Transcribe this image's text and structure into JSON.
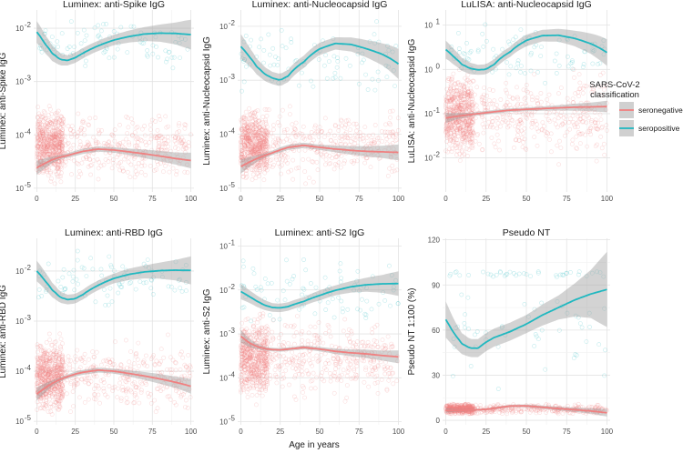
{
  "figure": {
    "x_axis_label": "Age in years",
    "legend": {
      "title_line1": "SARS-CoV-2",
      "title_line2": "classification",
      "entries": [
        {
          "label": "seronegative",
          "color": "#f08080"
        },
        {
          "label": "seropositive",
          "color": "#20b8c0"
        }
      ]
    }
  },
  "chart_data": [
    {
      "id": "spike",
      "type": "line",
      "scale": "log",
      "title": "Luminex: anti-Spike IgG",
      "title_color": "#1a1a1a",
      "ylabel": "Luminex: anti-Spike IgG",
      "ylabel_color": "#1a1a1a",
      "xlim": [
        -2,
        102
      ],
      "ylim": [
        8.5e-06,
        0.022
      ],
      "xticks": [
        0,
        25,
        50,
        75,
        100
      ],
      "yticks": [
        {
          "value": 1e-05,
          "label": "10"
        },
        {
          "value": 0.0001,
          "label": "10"
        },
        {
          "value": 0.001,
          "label": "10"
        },
        {
          "value": 0.01,
          "label": "10"
        }
      ],
      "ytick_exponents": [
        "-5",
        "-4",
        "-3",
        "-2"
      ],
      "series": [
        {
          "name": "seropositive",
          "color": "#20b8c0",
          "x": [
            0,
            5,
            10,
            15,
            20,
            25,
            30,
            40,
            50,
            60,
            70,
            80,
            90,
            100
          ],
          "values": [
            0.0085,
            0.0052,
            0.0034,
            0.0026,
            0.0025,
            0.0028,
            0.0034,
            0.0047,
            0.006,
            0.007,
            0.0078,
            0.0081,
            0.008,
            0.0076
          ],
          "band_factor": [
            1.6,
            1.5,
            1.4,
            1.3,
            1.25,
            1.25,
            1.25,
            1.25,
            1.25,
            1.3,
            1.35,
            1.45,
            1.6,
            1.9
          ],
          "scatter": {
            "n": 90,
            "ymin": 0.0012,
            "ymax": 0.02,
            "xmin": 0,
            "xmax": 100
          }
        },
        {
          "name": "seronegative",
          "color": "#f08080",
          "x": [
            0,
            5,
            10,
            15,
            20,
            25,
            30,
            40,
            50,
            60,
            70,
            80,
            90,
            100
          ],
          "values": [
            2.4e-05,
            2.9e-05,
            3.4e-05,
            3.8e-05,
            4.1e-05,
            4.5e-05,
            4.9e-05,
            5.4e-05,
            5.2e-05,
            4.8e-05,
            4.4e-05,
            4e-05,
            3.6e-05,
            3.3e-05
          ],
          "band_factor": [
            1.35,
            1.25,
            1.15,
            1.1,
            1.1,
            1.12,
            1.12,
            1.12,
            1.12,
            1.15,
            1.2,
            1.25,
            1.3,
            1.4
          ],
          "scatter": {
            "n": 900,
            "ymin": 1e-05,
            "ymax": 0.0004,
            "xmin": 0,
            "xmax": 100,
            "dense_to": 17,
            "dense_frac": 0.55
          }
        }
      ]
    },
    {
      "id": "nc",
      "type": "line",
      "scale": "log",
      "title": "Luminex: anti-Nucleocapsid IgG",
      "title_color": "#1a1a1a",
      "ylabel": "Luminex: anti-Nucleocapsid IgG",
      "ylabel_color": "#1a1a1a",
      "xlim": [
        -2,
        102
      ],
      "ylim": [
        8.5e-06,
        0.02
      ],
      "xticks": [
        0,
        25,
        50,
        75,
        100
      ],
      "yticks": [
        {
          "value": 1e-05,
          "label": "10"
        },
        {
          "value": 0.0001,
          "label": "10"
        },
        {
          "value": 0.001,
          "label": "10"
        },
        {
          "value": 0.01,
          "label": "10"
        }
      ],
      "ytick_exponents": [
        "-5",
        "-4",
        "-3",
        "-2"
      ],
      "series": [
        {
          "name": "seropositive",
          "color": "#20b8c0",
          "x": [
            0,
            5,
            10,
            15,
            20,
            25,
            30,
            40,
            50,
            60,
            70,
            80,
            90,
            100
          ],
          "values": [
            0.0042,
            0.0028,
            0.0018,
            0.0013,
            0.0011,
            0.001,
            0.0012,
            0.0022,
            0.0038,
            0.0048,
            0.0046,
            0.0038,
            0.003,
            0.002
          ],
          "band_factor": [
            1.7,
            1.5,
            1.4,
            1.35,
            1.3,
            1.3,
            1.3,
            1.3,
            1.3,
            1.3,
            1.35,
            1.45,
            1.6,
            1.9
          ],
          "scatter": {
            "n": 90,
            "ymin": 0.0003,
            "ymax": 0.018,
            "xmin": 0,
            "xmax": 100
          }
        },
        {
          "name": "seronegative",
          "color": "#f08080",
          "x": [
            0,
            5,
            10,
            15,
            20,
            25,
            30,
            40,
            50,
            60,
            70,
            80,
            90,
            100
          ],
          "values": [
            2.5e-05,
            3e-05,
            3.5e-05,
            4e-05,
            4.5e-05,
            5.1e-05,
            5.7e-05,
            6.2e-05,
            5.7e-05,
            5.3e-05,
            5e-05,
            4.8e-05,
            4.7e-05,
            4.6e-05
          ],
          "band_factor": [
            1.35,
            1.25,
            1.15,
            1.1,
            1.1,
            1.12,
            1.12,
            1.12,
            1.12,
            1.15,
            1.2,
            1.25,
            1.3,
            1.4
          ],
          "scatter": {
            "n": 900,
            "ymin": 1e-05,
            "ymax": 0.0004,
            "xmin": 0,
            "xmax": 100,
            "dense_to": 17,
            "dense_frac": 0.55
          }
        }
      ]
    },
    {
      "id": "lulisa",
      "type": "line",
      "scale": "log",
      "title": "LuLISA: anti-Nucleocapsid IgG",
      "title_color": "#9b1c1c",
      "ylabel": "LuLISA: anti-Nucleocapsid IgG",
      "ylabel_color": "#9b1c1c",
      "xlim": [
        -2,
        102
      ],
      "ylim": [
        0.0017,
        22
      ],
      "xticks": [
        0,
        25,
        50,
        75,
        100
      ],
      "yticks": [
        {
          "value": 0.01,
          "label": "10"
        },
        {
          "value": 0.1,
          "label": "10"
        },
        {
          "value": 1,
          "label": "10"
        },
        {
          "value": 10,
          "label": "10"
        }
      ],
      "ytick_exponents": [
        "-2",
        "-1",
        "0",
        "1"
      ],
      "series": [
        {
          "name": "seropositive",
          "color": "#20b8c0",
          "x": [
            0,
            5,
            10,
            15,
            20,
            25,
            30,
            40,
            50,
            60,
            70,
            80,
            90,
            100
          ],
          "values": [
            2.8,
            1.9,
            1.3,
            1.05,
            0.98,
            1.0,
            1.3,
            2.5,
            4.5,
            5.8,
            5.9,
            5.0,
            3.8,
            2.4
          ],
          "band_factor": [
            1.6,
            1.5,
            1.4,
            1.35,
            1.3,
            1.3,
            1.3,
            1.3,
            1.35,
            1.35,
            1.4,
            1.5,
            1.7,
            2.0
          ],
          "scatter": {
            "n": 90,
            "ymin": 0.35,
            "ymax": 18,
            "xmin": 0,
            "xmax": 100
          }
        },
        {
          "name": "seronegative",
          "color": "#f08080",
          "x": [
            0,
            5,
            10,
            15,
            20,
            25,
            30,
            40,
            50,
            60,
            70,
            80,
            90,
            100
          ],
          "values": [
            0.08,
            0.085,
            0.09,
            0.095,
            0.1,
            0.105,
            0.11,
            0.12,
            0.125,
            0.13,
            0.135,
            0.14,
            0.142,
            0.145
          ],
          "band_factor": [
            1.3,
            1.2,
            1.15,
            1.1,
            1.1,
            1.1,
            1.1,
            1.1,
            1.1,
            1.12,
            1.15,
            1.2,
            1.25,
            1.35
          ],
          "scatter": {
            "n": 900,
            "ymin": 0.006,
            "ymax": 1.5,
            "xmin": 0,
            "xmax": 100,
            "dense_to": 17,
            "dense_frac": 0.55
          }
        }
      ]
    },
    {
      "id": "rbd",
      "type": "line",
      "scale": "log",
      "title": "Luminex: anti-RBD IgG",
      "title_color": "#1a1a1a",
      "ylabel": "Luminex: anti-RBD IgG",
      "ylabel_color": "#1a1a1a",
      "xlim": [
        -2,
        102
      ],
      "ylim": [
        8.5e-06,
        0.045
      ],
      "xticks": [
        0,
        25,
        50,
        75,
        100
      ],
      "yticks": [
        {
          "value": 1e-05,
          "label": "10"
        },
        {
          "value": 0.0001,
          "label": "10"
        },
        {
          "value": 0.001,
          "label": "10"
        },
        {
          "value": 0.01,
          "label": "10"
        }
      ],
      "ytick_exponents": [
        "-5",
        "-4",
        "-3",
        "-2"
      ],
      "series": [
        {
          "name": "seropositive",
          "color": "#20b8c0",
          "x": [
            0,
            5,
            10,
            15,
            20,
            25,
            30,
            40,
            50,
            60,
            70,
            80,
            90,
            100
          ],
          "values": [
            0.01,
            0.0065,
            0.0042,
            0.003,
            0.0027,
            0.0028,
            0.0034,
            0.0052,
            0.0071,
            0.0086,
            0.0096,
            0.0102,
            0.0104,
            0.0103
          ],
          "band_factor": [
            1.6,
            1.5,
            1.4,
            1.3,
            1.25,
            1.25,
            1.25,
            1.25,
            1.25,
            1.3,
            1.35,
            1.45,
            1.6,
            1.9
          ],
          "scatter": {
            "n": 90,
            "ymin": 0.0012,
            "ymax": 0.035,
            "xmin": 0,
            "xmax": 100
          }
        },
        {
          "name": "seronegative",
          "color": "#f08080",
          "x": [
            0,
            5,
            10,
            15,
            20,
            25,
            30,
            40,
            50,
            60,
            70,
            80,
            90,
            100
          ],
          "values": [
            3.5e-05,
            4.5e-05,
            5.7e-05,
            6.8e-05,
            7.8e-05,
            8.8e-05,
            9.5e-05,
            0.000105,
            0.0001,
            9e-05,
            8e-05,
            7e-05,
            6e-05,
            5e-05
          ],
          "band_factor": [
            1.35,
            1.25,
            1.15,
            1.1,
            1.1,
            1.12,
            1.12,
            1.12,
            1.12,
            1.15,
            1.2,
            1.25,
            1.3,
            1.4
          ],
          "scatter": {
            "n": 900,
            "ymin": 1e-05,
            "ymax": 0.0006,
            "xmin": 0,
            "xmax": 100,
            "dense_to": 17,
            "dense_frac": 0.55
          }
        }
      ]
    },
    {
      "id": "s2",
      "type": "line",
      "scale": "log",
      "title": "Luminex: anti-S2 IgG",
      "title_color": "#1a1a1a",
      "ylabel": "Luminex: anti-S2 IgG",
      "ylabel_color": "#1a1a1a",
      "xlim": [
        -2,
        102
      ],
      "ylim": [
        8.5e-06,
        0.15
      ],
      "xticks": [
        0,
        25,
        50,
        75,
        100
      ],
      "yticks": [
        {
          "value": 1e-05,
          "label": "10"
        },
        {
          "value": 0.0001,
          "label": "10"
        },
        {
          "value": 0.001,
          "label": "10"
        },
        {
          "value": 0.01,
          "label": "10"
        },
        {
          "value": 0.1,
          "label": "10"
        }
      ],
      "ytick_exponents": [
        "-5",
        "-4",
        "-3",
        "-2",
        "-1"
      ],
      "series": [
        {
          "name": "seropositive",
          "color": "#20b8c0",
          "x": [
            0,
            5,
            10,
            15,
            20,
            25,
            30,
            40,
            50,
            60,
            70,
            80,
            90,
            100
          ],
          "values": [
            0.0092,
            0.0072,
            0.0056,
            0.0045,
            0.004,
            0.0039,
            0.0042,
            0.0055,
            0.0075,
            0.0098,
            0.0118,
            0.0132,
            0.0138,
            0.014
          ],
          "band_factor": [
            1.5,
            1.4,
            1.35,
            1.3,
            1.25,
            1.25,
            1.25,
            1.25,
            1.3,
            1.3,
            1.35,
            1.45,
            1.6,
            1.9
          ],
          "scatter": {
            "n": 90,
            "ymin": 0.0008,
            "ymax": 0.1,
            "xmin": 0,
            "xmax": 100
          }
        },
        {
          "name": "seronegative",
          "color": "#f08080",
          "x": [
            0,
            5,
            10,
            15,
            20,
            25,
            30,
            40,
            50,
            60,
            70,
            80,
            90,
            100
          ],
          "values": [
            0.00088,
            0.00063,
            0.00052,
            0.00046,
            0.00044,
            0.00043,
            0.00045,
            0.00049,
            0.00045,
            0.0004,
            0.00037,
            0.00035,
            0.00032,
            0.0003
          ],
          "band_factor": [
            1.4,
            1.25,
            1.15,
            1.1,
            1.1,
            1.1,
            1.1,
            1.1,
            1.12,
            1.15,
            1.2,
            1.25,
            1.3,
            1.4
          ],
          "scatter": {
            "n": 900,
            "ymin": 2e-05,
            "ymax": 0.004,
            "xmin": 0,
            "xmax": 100,
            "dense_to": 17,
            "dense_frac": 0.55
          }
        }
      ]
    },
    {
      "id": "pnt",
      "type": "line",
      "scale": "linear",
      "title": "Pseudo NT",
      "title_color": "#1e8a1e",
      "ylabel": "Pseudo NT 1:100 (%)",
      "ylabel_color": "#1e8a1e",
      "xlim": [
        -2,
        102
      ],
      "ylim": [
        -3,
        121
      ],
      "xticks": [
        0,
        25,
        50,
        75,
        100
      ],
      "yticks": [
        {
          "value": 0,
          "label": "0"
        },
        {
          "value": 30,
          "label": "30"
        },
        {
          "value": 60,
          "label": "60"
        },
        {
          "value": 90,
          "label": "90"
        },
        {
          "value": 120,
          "label": "120"
        }
      ],
      "ytick_exponents": [
        "",
        "",
        "",
        "",
        ""
      ],
      "series": [
        {
          "name": "seropositive",
          "color": "#20b8c0",
          "x": [
            0,
            5,
            10,
            15,
            20,
            25,
            30,
            40,
            50,
            60,
            70,
            80,
            90,
            100
          ],
          "values": [
            67,
            58,
            51,
            48,
            48,
            52,
            55,
            59,
            64,
            70,
            75,
            80,
            84,
            87
          ],
          "band_abs": [
            12,
            9,
            7,
            6,
            6,
            6,
            6,
            6,
            6,
            7,
            8,
            11,
            16,
            25
          ],
          "scatter": {
            "n": 90,
            "ymin": 20,
            "ymax": 100,
            "xmin": 0,
            "xmax": 100,
            "cluster_y": 97
          }
        },
        {
          "name": "seronegative",
          "color": "#f08080",
          "x": [
            0,
            5,
            10,
            15,
            20,
            25,
            30,
            40,
            50,
            60,
            70,
            80,
            90,
            100
          ],
          "values": [
            6.5,
            6.5,
            6.6,
            6.8,
            7,
            7.3,
            8,
            9.5,
            9.6,
            8.7,
            7.8,
            7,
            6.2,
            5
          ],
          "band_abs": [
            1.5,
            1,
            0.8,
            0.7,
            0.7,
            0.7,
            0.8,
            0.9,
            1,
            1.1,
            1.2,
            1.4,
            1.8,
            2.5
          ],
          "scatter": {
            "n": 700,
            "ymin": 4,
            "ymax": 11,
            "xmin": 0,
            "xmax": 100,
            "dense_to": 17,
            "dense_frac": 0.5
          }
        }
      ]
    }
  ]
}
